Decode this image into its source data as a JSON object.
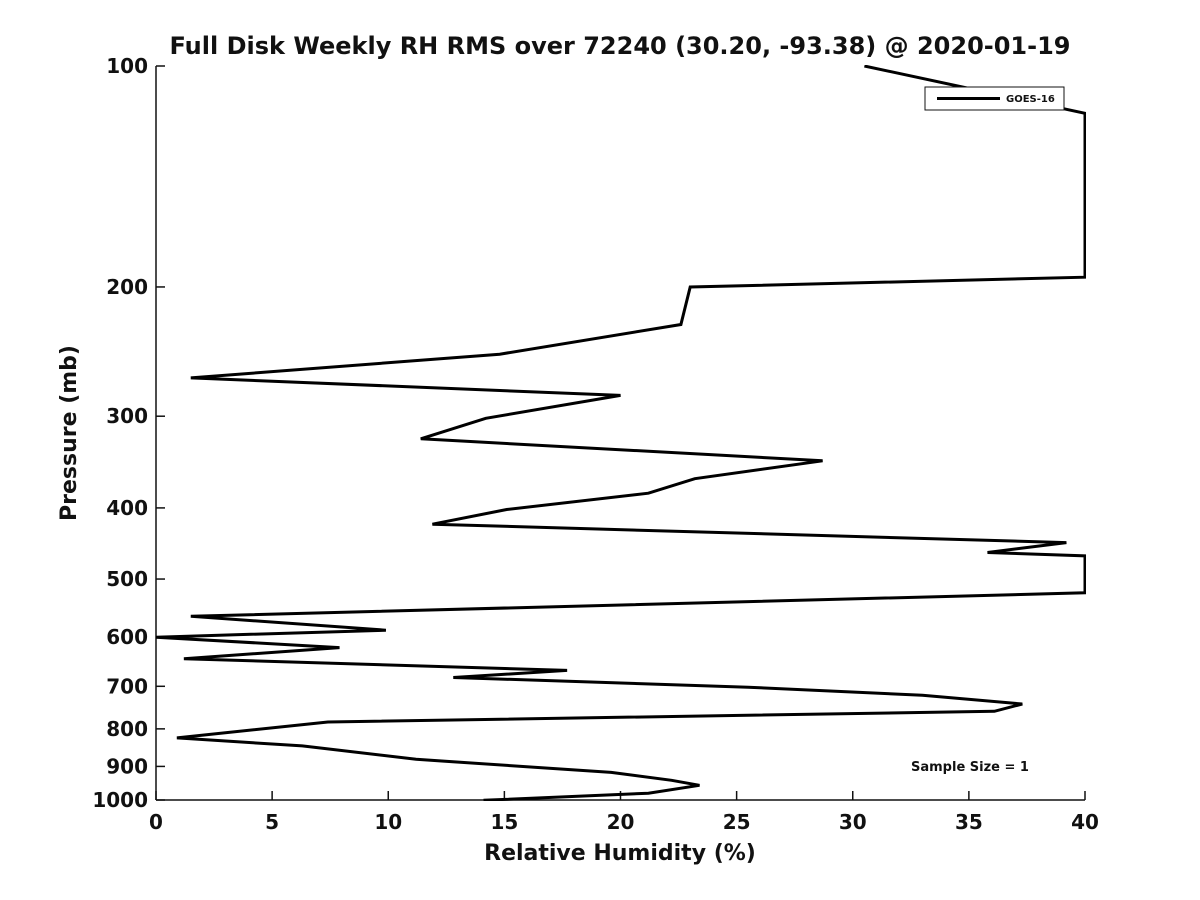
{
  "chart_data": {
    "type": "line",
    "title": "Full Disk Weekly RH RMS over 72240 (30.20, -93.38) @ 2020-01-19",
    "xlabel": "Relative Humidity (%)",
    "ylabel": "Pressure (mb)",
    "xlim": [
      0,
      40
    ],
    "ylim": [
      100,
      1000
    ],
    "y_scale": "log",
    "y_reversed": true,
    "x_ticks": [
      "0",
      "5",
      "10",
      "15",
      "20",
      "25",
      "30",
      "35",
      "40"
    ],
    "y_ticks": [
      "100",
      "200",
      "300",
      "400",
      "500",
      "600",
      "700",
      "800",
      "900",
      "1000"
    ],
    "grid": false,
    "legend_position": "top-right",
    "annotation": "Sample Size = 1",
    "series": [
      {
        "name": "GOES-16",
        "color": "#000000",
        "points": [
          [
            30.5,
            100
          ],
          [
            40,
            116
          ],
          [
            40,
            194
          ],
          [
            23.0,
            200
          ],
          [
            22.6,
            225
          ],
          [
            14.8,
            247
          ],
          [
            1.5,
            266
          ],
          [
            20.0,
            281
          ],
          [
            14.2,
            302
          ],
          [
            11.4,
            322
          ],
          [
            28.7,
            345
          ],
          [
            23.2,
            365
          ],
          [
            21.2,
            382
          ],
          [
            15.1,
            402
          ],
          [
            11.9,
            421
          ],
          [
            39.2,
            446
          ],
          [
            35.8,
            460
          ],
          [
            40,
            465
          ],
          [
            40,
            522
          ],
          [
            1.5,
            562
          ],
          [
            9.9,
            587
          ],
          [
            0,
            600
          ],
          [
            7.9,
            620
          ],
          [
            1.2,
            642
          ],
          [
            17.7,
            666
          ],
          [
            12.8,
            681
          ],
          [
            25.5,
            702
          ],
          [
            33.0,
            720
          ],
          [
            37.3,
            740
          ],
          [
            36.1,
            757
          ],
          [
            7.4,
            783
          ],
          [
            0.9,
            823
          ],
          [
            6.3,
            844
          ],
          [
            11.2,
            880
          ],
          [
            19.6,
            917
          ],
          [
            22.2,
            940
          ],
          [
            23.4,
            955
          ],
          [
            21.2,
            979
          ],
          [
            14.1,
            1001
          ]
        ]
      }
    ]
  }
}
